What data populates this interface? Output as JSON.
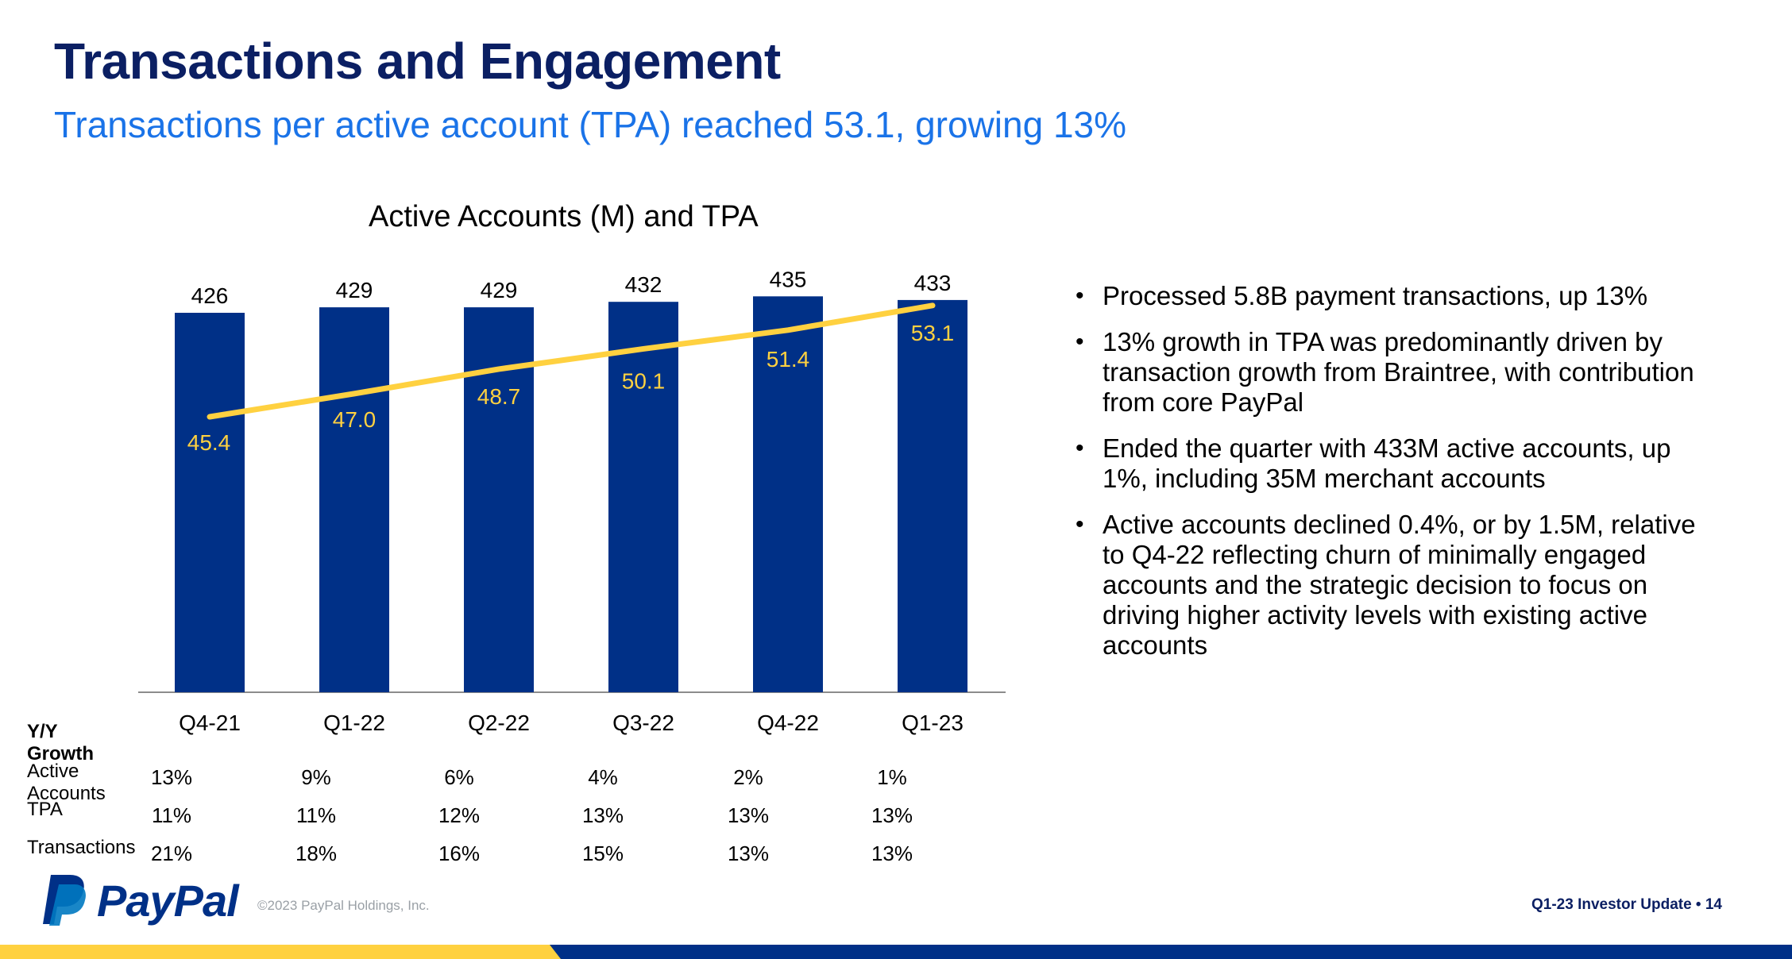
{
  "slide": {
    "title": "Transactions and Engagement",
    "subtitle": "Transactions per active account (TPA) reached 53.1, growing 13%"
  },
  "chart_data": {
    "type": "bar",
    "title": "Active Accounts (M) and TPA",
    "categories": [
      "Q4-21",
      "Q1-22",
      "Q2-22",
      "Q3-22",
      "Q4-22",
      "Q1-23"
    ],
    "series": [
      {
        "type": "bar",
        "values": [
          426,
          429,
          429,
          432,
          435,
          433
        ],
        "labels": [
          "426",
          "429",
          "429",
          "432",
          "435",
          "433"
        ],
        "color": "#003087"
      },
      {
        "type": "line",
        "values": [
          45.4,
          47.0,
          48.7,
          50.1,
          51.4,
          53.1
        ],
        "labels": [
          "45.4",
          "47.0",
          "48.7",
          "50.1",
          "51.4",
          "53.1"
        ],
        "color": "#ffd140"
      }
    ],
    "bar_label_color": "#000000",
    "line_label_color": "#ffd140",
    "grid": false,
    "legend": "none"
  },
  "growth_table": {
    "header": "Y/Y Growth",
    "rows": [
      {
        "label": "Active Accounts",
        "values": [
          "13%",
          "9%",
          "6%",
          "4%",
          "2%",
          "1%"
        ]
      },
      {
        "label": "TPA",
        "values": [
          "11%",
          "11%",
          "12%",
          "13%",
          "13%",
          "13%"
        ]
      },
      {
        "label": "Transactions",
        "values": [
          "21%",
          "18%",
          "16%",
          "15%",
          "13%",
          "13%"
        ]
      }
    ]
  },
  "bullets": [
    "Processed 5.8B payment transactions, up 13%",
    "13% growth in TPA was predominantly driven by transaction growth from Braintree, with contribution from core PayPal",
    "Ended the quarter with 433M active accounts, up 1%, including 35M merchant accounts",
    "Active accounts declined 0.4%, or by 1.5M, relative to Q4-22 reflecting churn of minimally engaged accounts and the strategic decision to focus on driving higher activity levels with existing active accounts"
  ],
  "footer": {
    "logo_text": "PayPal",
    "copyright": "©2023 PayPal Holdings, Inc.",
    "right": "Q1-23 Investor Update  •  14"
  },
  "colors": {
    "title": "#0b1f63",
    "subtitle": "#1a73e8",
    "bar": "#003087",
    "line": "#ffd140",
    "bottom_bar_yellow": "#ffd140",
    "bottom_bar_navy": "#003087"
  }
}
